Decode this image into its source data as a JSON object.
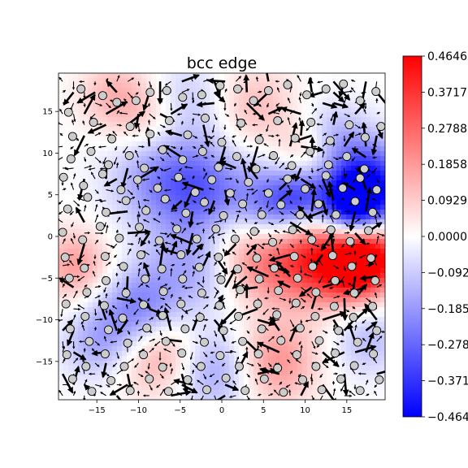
{
  "chart_data": {
    "type": "heatmap",
    "title": "bcc edge",
    "xlabel": "",
    "ylabel": "",
    "xlim": [
      -19.6,
      19.6
    ],
    "ylim": [
      -19.6,
      19.6
    ],
    "x_ticks": [
      -15,
      -10,
      -5,
      0,
      5,
      10,
      15
    ],
    "y_ticks": [
      -15,
      -10,
      -5,
      0,
      5,
      10,
      15
    ],
    "x_tick_labels": [
      "−15",
      "−10",
      "−5",
      "0",
      "5",
      "10",
      "15"
    ],
    "y_tick_labels": [
      "−15",
      "−10",
      "−5",
      "0",
      "5",
      "10",
      "15"
    ],
    "colormap": "bwr",
    "colorbar": {
      "range": [
        -0.4646,
        0.4646
      ],
      "ticks": [
        0.4646,
        0.3717,
        0.2788,
        0.1858,
        0.0929,
        0.0,
        -0.0929,
        -0.1858,
        -0.2788,
        -0.3717,
        -0.4646
      ],
      "tick_labels": [
        "0.4646",
        "0.3717",
        "0.2788",
        "0.1858",
        "0.0929",
        "0.0000",
        "−0.0929",
        "−0.1858",
        "−0.2788",
        "−0.3717",
        "−0.4646"
      ]
    },
    "field_blobs": [
      {
        "x": 17.5,
        "y": 6.0,
        "v": -0.46,
        "r": 3.5
      },
      {
        "x": 15.5,
        "y": 3.5,
        "v": -0.35,
        "r": 2.5
      },
      {
        "x": 11.5,
        "y": -2.5,
        "v": 0.4,
        "r": 3.8
      },
      {
        "x": 18.0,
        "y": -2.5,
        "v": 0.44,
        "r": 2.8
      },
      {
        "x": 15.5,
        "y": -4.5,
        "v": 0.2,
        "r": 2.5
      },
      {
        "x": 6.0,
        "y": 3.5,
        "v": -0.26,
        "r": 3.5
      },
      {
        "x": 9.5,
        "y": 4.5,
        "v": -0.2,
        "r": 2.5
      },
      {
        "x": -6.5,
        "y": 7.5,
        "v": -0.25,
        "r": 4.5
      },
      {
        "x": -1.5,
        "y": 5.0,
        "v": -0.16,
        "r": 3.5
      },
      {
        "x": -10.0,
        "y": -9.0,
        "v": -0.24,
        "r": 3.5
      },
      {
        "x": -15.0,
        "y": -13.0,
        "v": -0.14,
        "r": 3.0
      },
      {
        "x": -3.5,
        "y": -3.5,
        "v": -0.15,
        "r": 4.0
      },
      {
        "x": -1.0,
        "y": -16.0,
        "v": -0.18,
        "r": 3.5
      },
      {
        "x": -5.0,
        "y": 16.0,
        "v": -0.14,
        "r": 3.5
      },
      {
        "x": 13.5,
        "y": 12.0,
        "v": -0.12,
        "r": 3.0
      },
      {
        "x": -7.5,
        "y": -14.0,
        "v": 0.2,
        "r": 3.5
      },
      {
        "x": 6.5,
        "y": -15.0,
        "v": 0.2,
        "r": 3.5
      },
      {
        "x": -17.5,
        "y": -3.5,
        "v": 0.18,
        "r": 3.0
      },
      {
        "x": -8.0,
        "y": 14.0,
        "v": 0.18,
        "r": 3.5
      },
      {
        "x": 4.5,
        "y": -3.0,
        "v": 0.2,
        "r": 3.5
      },
      {
        "x": 4.0,
        "y": 15.5,
        "v": 0.12,
        "r": 3.5
      },
      {
        "x": -13.0,
        "y": 17.0,
        "v": 0.12,
        "r": 3.0
      },
      {
        "x": 10.0,
        "y": 10.0,
        "v": 0.12,
        "r": 2.5
      },
      {
        "x": 17.5,
        "y": -12.5,
        "v": -0.12,
        "r": 3.0
      },
      {
        "x": 1.5,
        "y": 1.0,
        "v": 0.08,
        "r": 3.0
      }
    ],
    "atoms": [
      [
        -18.4,
        14.9
      ],
      [
        -16.9,
        17.7
      ],
      [
        -14.3,
        16.9
      ],
      [
        -12.6,
        16.1
      ],
      [
        -10.3,
        16.3
      ],
      [
        -8.6,
        17.3
      ],
      [
        -6.6,
        17.5
      ],
      [
        -4.7,
        16.7
      ],
      [
        -2.4,
        17.0
      ],
      [
        -0.2,
        18.1
      ],
      [
        1.9,
        17.7
      ],
      [
        3.8,
        16.3
      ],
      [
        5.6,
        17.5
      ],
      [
        7.9,
        18.2
      ],
      [
        10.2,
        17.0
      ],
      [
        12.5,
        17.7
      ],
      [
        14.6,
        18.3
      ],
      [
        16.6,
        16.3
      ],
      [
        18.5,
        17.4
      ],
      [
        -17.9,
        12.0
      ],
      [
        -15.4,
        13.7
      ],
      [
        -13.2,
        11.7
      ],
      [
        -11.0,
        13.2
      ],
      [
        -8.6,
        12.3
      ],
      [
        -6.3,
        13.9
      ],
      [
        -4.1,
        12.2
      ],
      [
        -2.0,
        14.2
      ],
      [
        0.0,
        11.3
      ],
      [
        2.3,
        13.6
      ],
      [
        4.5,
        11.6
      ],
      [
        6.7,
        13.9
      ],
      [
        8.8,
        11.8
      ],
      [
        10.7,
        13.7
      ],
      [
        13.0,
        11.5
      ],
      [
        15.3,
        13.4
      ],
      [
        17.2,
        11.9
      ],
      [
        19.1,
        13.2
      ],
      [
        -18.1,
        9.3
      ],
      [
        -15.7,
        10.2
      ],
      [
        -13.6,
        8.6
      ],
      [
        -11.1,
        9.7
      ],
      [
        -9.3,
        8.2
      ],
      [
        -7.1,
        10.4
      ],
      [
        -4.7,
        9.2
      ],
      [
        -2.3,
        10.2
      ],
      [
        -0.4,
        8.3
      ],
      [
        1.8,
        9.6
      ],
      [
        4.1,
        8.1
      ],
      [
        6.2,
        9.7
      ],
      [
        8.4,
        8.5
      ],
      [
        10.6,
        10.2
      ],
      [
        12.8,
        8.6
      ],
      [
        15.0,
        9.6
      ],
      [
        17.1,
        8.1
      ],
      [
        -19.0,
        7.1
      ],
      [
        -16.6,
        6.1
      ],
      [
        -14.3,
        7.5
      ],
      [
        -12.1,
        5.6
      ],
      [
        -10.1,
        6.8
      ],
      [
        -7.7,
        5.8
      ],
      [
        -5.2,
        7.1
      ],
      [
        -3.2,
        5.3
      ],
      [
        -1.2,
        6.8
      ],
      [
        1.0,
        5.2
      ],
      [
        3.2,
        6.5
      ],
      [
        5.6,
        5.2
      ],
      [
        7.9,
        6.9
      ],
      [
        10.0,
        5.7
      ],
      [
        12.5,
        7.3
      ],
      [
        14.5,
        5.8
      ],
      [
        16.6,
        7.0
      ],
      [
        18.6,
        5.6
      ],
      [
        -18.5,
        3.3
      ],
      [
        -16.1,
        4.7
      ],
      [
        -13.9,
        2.9
      ],
      [
        -11.5,
        4.3
      ],
      [
        -9.1,
        3.1
      ],
      [
        -6.8,
        4.5
      ],
      [
        -4.3,
        2.8
      ],
      [
        -2.1,
        4.1
      ],
      [
        0.2,
        2.5
      ],
      [
        2.5,
        3.9
      ],
      [
        4.8,
        2.6
      ],
      [
        7.1,
        3.8
      ],
      [
        9.4,
        2.6
      ],
      [
        11.6,
        3.9
      ],
      [
        13.7,
        2.6
      ],
      [
        16.0,
        4.2
      ],
      [
        18.1,
        2.9
      ],
      [
        -19.1,
        0.5
      ],
      [
        -16.7,
        -0.4
      ],
      [
        -14.6,
        1.2
      ],
      [
        -12.3,
        -0.2
      ],
      [
        -9.9,
        1.1
      ],
      [
        -7.5,
        -0.5
      ],
      [
        -5.4,
        0.9
      ],
      [
        -3.0,
        -0.3
      ],
      [
        -0.7,
        0.9
      ],
      [
        1.6,
        -0.3
      ],
      [
        3.9,
        0.6
      ],
      [
        6.1,
        -0.7
      ],
      [
        8.5,
        0.8
      ],
      [
        10.8,
        -0.4
      ],
      [
        13.1,
        0.8
      ],
      [
        15.4,
        -0.6
      ],
      [
        17.6,
        0.7
      ],
      [
        -18.8,
        -2.5
      ],
      [
        -16.5,
        -3.8
      ],
      [
        -14.0,
        -2.4
      ],
      [
        -11.8,
        -3.6
      ],
      [
        -9.7,
        -2.2
      ],
      [
        -7.2,
        -3.9
      ],
      [
        -4.9,
        -2.2
      ],
      [
        -2.7,
        -3.7
      ],
      [
        -0.4,
        -2.5
      ],
      [
        1.9,
        -3.9
      ],
      [
        4.2,
        -2.6
      ],
      [
        6.3,
        -3.8
      ],
      [
        8.7,
        -2.4
      ],
      [
        10.9,
        -3.6
      ],
      [
        13.3,
        -2.3
      ],
      [
        15.6,
        -3.6
      ],
      [
        17.9,
        -2.6
      ],
      [
        -18.3,
        -5.0
      ],
      [
        -16.2,
        -6.7
      ],
      [
        -13.9,
        -5.3
      ],
      [
        -11.5,
        -6.8
      ],
      [
        -9.2,
        -5.1
      ],
      [
        -7.0,
        -6.6
      ],
      [
        -4.7,
        -5.1
      ],
      [
        -2.4,
        -6.8
      ],
      [
        -0.1,
        -5.2
      ],
      [
        2.2,
        -6.4
      ],
      [
        4.5,
        -5.1
      ],
      [
        6.8,
        -6.5
      ],
      [
        9.1,
        -5.0
      ],
      [
        11.3,
        -6.7
      ],
      [
        13.6,
        -5.3
      ],
      [
        15.9,
        -6.8
      ],
      [
        18.4,
        -5.3
      ],
      [
        -18.7,
        -8.1
      ],
      [
        -16.4,
        -9.6
      ],
      [
        -14.1,
        -8.3
      ],
      [
        -11.9,
        -9.8
      ],
      [
        -9.4,
        -8.2
      ],
      [
        -7.1,
        -9.5
      ],
      [
        -4.9,
        -8.1
      ],
      [
        -2.6,
        -9.7
      ],
      [
        -0.3,
        -8.3
      ],
      [
        2.0,
        -9.6
      ],
      [
        4.3,
        -8.1
      ],
      [
        6.6,
        -9.4
      ],
      [
        8.9,
        -8.0
      ],
      [
        11.2,
        -9.6
      ],
      [
        13.5,
        -8.4
      ],
      [
        15.8,
        -9.7
      ],
      [
        18.1,
        -8.4
      ],
      [
        -18.2,
        -11.1
      ],
      [
        -15.9,
        -12.6
      ],
      [
        -13.6,
        -11.2
      ],
      [
        -11.3,
        -12.8
      ],
      [
        -9.0,
        -11.0
      ],
      [
        -6.7,
        -12.6
      ],
      [
        -4.4,
        -11.1
      ],
      [
        -2.1,
        -12.7
      ],
      [
        0.2,
        -11.3
      ],
      [
        2.5,
        -12.6
      ],
      [
        4.8,
        -11.1
      ],
      [
        7.1,
        -12.5
      ],
      [
        9.4,
        -11.0
      ],
      [
        11.7,
        -12.5
      ],
      [
        14.0,
        -11.3
      ],
      [
        16.3,
        -12.7
      ],
      [
        18.6,
        -11.3
      ],
      [
        -18.6,
        -14.2
      ],
      [
        -16.3,
        -15.6
      ],
      [
        -14.0,
        -14.1
      ],
      [
        -11.7,
        -15.6
      ],
      [
        -9.4,
        -14.2
      ],
      [
        -7.1,
        -15.7
      ],
      [
        -4.8,
        -14.0
      ],
      [
        -2.5,
        -15.6
      ],
      [
        -0.2,
        -14.3
      ],
      [
        2.1,
        -15.6
      ],
      [
        4.4,
        -14.1
      ],
      [
        6.7,
        -15.8
      ],
      [
        9.0,
        -14.2
      ],
      [
        11.3,
        -15.6
      ],
      [
        13.6,
        -14.0
      ],
      [
        15.9,
        -15.5
      ],
      [
        18.2,
        -14.1
      ],
      [
        -17.9,
        -17.1
      ],
      [
        -15.6,
        -18.6
      ],
      [
        -13.3,
        -17.3
      ],
      [
        -11.0,
        -18.5
      ],
      [
        -8.7,
        -17.1
      ],
      [
        -6.4,
        -18.6
      ],
      [
        -4.1,
        -17.2
      ],
      [
        -1.8,
        -18.4
      ],
      [
        0.5,
        -17.0
      ],
      [
        2.8,
        -18.5
      ],
      [
        5.1,
        -17.1
      ],
      [
        7.4,
        -18.7
      ],
      [
        9.7,
        -17.2
      ],
      [
        12.0,
        -18.4
      ],
      [
        14.3,
        -17.1
      ],
      [
        16.6,
        -18.5
      ],
      [
        18.9,
        -17.2
      ]
    ]
  }
}
